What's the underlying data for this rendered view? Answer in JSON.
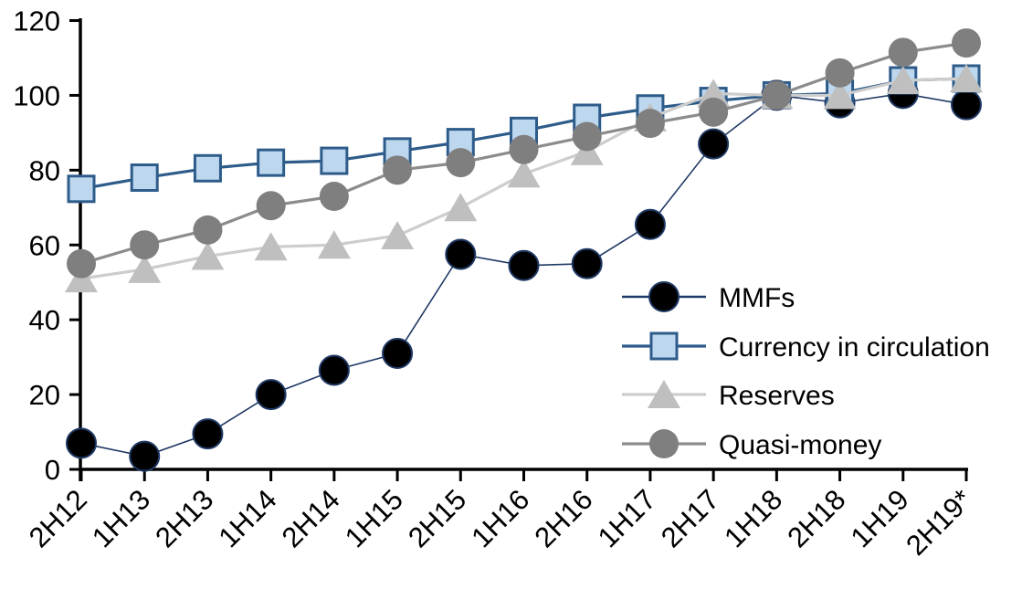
{
  "chart_data": {
    "type": "line",
    "title": "",
    "xlabel": "",
    "ylabel": "",
    "grid": false,
    "legend_position": "inside-right",
    "categories": [
      "2H12",
      "1H13",
      "2H13",
      "1H14",
      "2H14",
      "1H15",
      "2H15",
      "1H16",
      "2H16",
      "1H17",
      "2H17",
      "1H18",
      "2H18",
      "1H19",
      "2H19*"
    ],
    "y_axis": {
      "min": 0,
      "max": 120,
      "ticks": [
        0,
        20,
        40,
        60,
        80,
        100,
        120
      ]
    },
    "series": [
      {
        "name": "MMFs",
        "marker": "circle",
        "marker_fill": "#000000",
        "marker_stroke": "#1F3864",
        "marker_stroke_width": 2,
        "line_color": "#1F3864",
        "line_width": 1.6,
        "values": [
          7,
          3.5,
          9.5,
          20,
          26.5,
          31,
          57.5,
          54.5,
          55,
          65.5,
          87,
          100,
          98,
          100.5,
          97.5
        ]
      },
      {
        "name": "Currency in circulation",
        "marker": "square",
        "marker_fill": "#BDD7EE",
        "marker_stroke": "#2E5C8A",
        "marker_stroke_width": 3,
        "line_color": "#2E5C8A",
        "line_width": 3.2,
        "values": [
          75,
          78,
          80.5,
          82,
          82.5,
          85,
          87.5,
          90.5,
          94,
          96.5,
          98.5,
          100,
          100.5,
          104,
          104.5
        ]
      },
      {
        "name": "Reserves",
        "marker": "triangle",
        "marker_fill": "#BFBFBF",
        "marker_stroke": "none",
        "marker_stroke_width": 0,
        "line_color": "#CDCDCD",
        "line_width": 3.2,
        "values": [
          51,
          53.5,
          57,
          59.5,
          60,
          62.5,
          70,
          79,
          85,
          94,
          100.5,
          100,
          100,
          104,
          104.5
        ]
      },
      {
        "name": "Quasi-money",
        "marker": "circle",
        "marker_fill": "#7F7F7F",
        "marker_stroke": "none",
        "marker_stroke_width": 0,
        "line_color": "#8C8C8C",
        "line_width": 3.2,
        "values": [
          55,
          60,
          64,
          70.5,
          73,
          80,
          82,
          85.5,
          89,
          92.5,
          95.5,
          100,
          106,
          111.5,
          114
        ]
      }
    ]
  }
}
